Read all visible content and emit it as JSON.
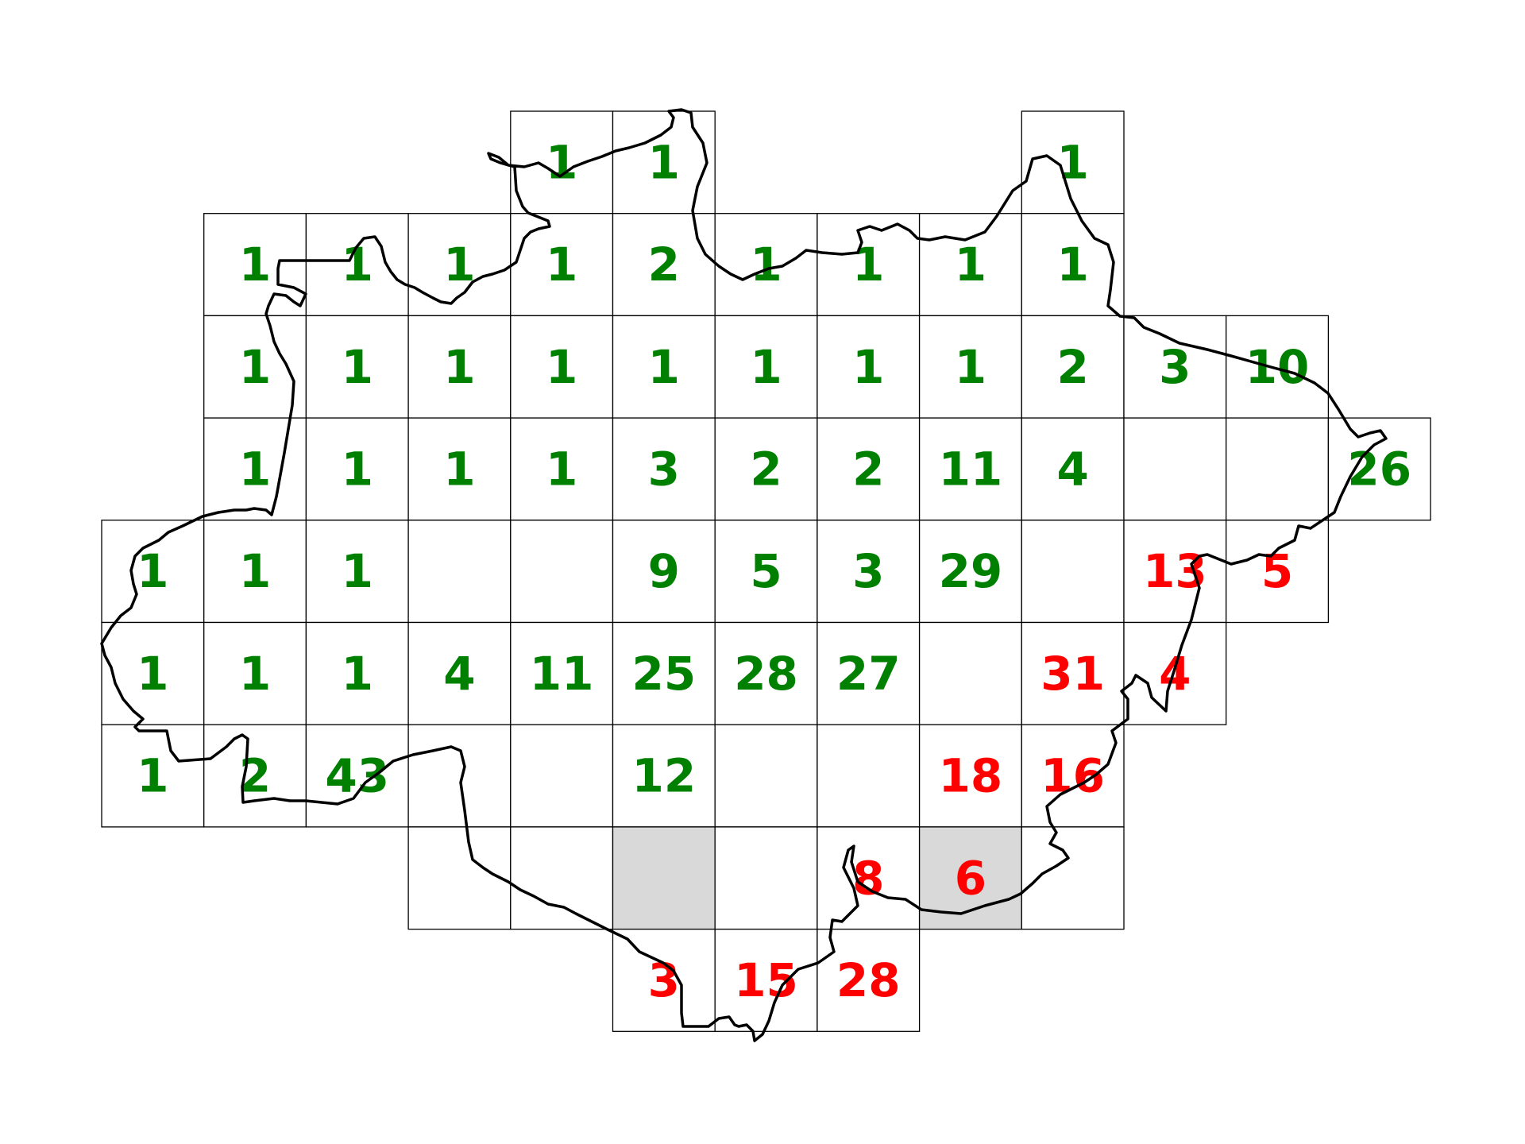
{
  "colors": {
    "green": "#008000",
    "red": "#ff0000",
    "cell_fill": "#ffffff",
    "cell_fill_shaded": "#d9d9d9",
    "grid_stroke": "#000000",
    "outline_stroke": "#000000"
  },
  "grid": {
    "cells": [
      {
        "row": 0,
        "col": 4,
        "label": "1",
        "status": "green"
      },
      {
        "row": 0,
        "col": 5,
        "label": "1",
        "status": "green"
      },
      {
        "row": 0,
        "col": 9,
        "label": "1",
        "status": "green"
      },
      {
        "row": 1,
        "col": 1,
        "label": "1",
        "status": "green"
      },
      {
        "row": 1,
        "col": 2,
        "label": "1",
        "status": "green"
      },
      {
        "row": 1,
        "col": 3,
        "label": "1",
        "status": "green"
      },
      {
        "row": 1,
        "col": 4,
        "label": "1",
        "status": "green"
      },
      {
        "row": 1,
        "col": 5,
        "label": "2",
        "status": "green"
      },
      {
        "row": 1,
        "col": 6,
        "label": "1",
        "status": "green"
      },
      {
        "row": 1,
        "col": 7,
        "label": "1",
        "status": "green"
      },
      {
        "row": 1,
        "col": 8,
        "label": "1",
        "status": "green"
      },
      {
        "row": 1,
        "col": 9,
        "label": "1",
        "status": "green"
      },
      {
        "row": 2,
        "col": 1,
        "label": "1",
        "status": "green"
      },
      {
        "row": 2,
        "col": 2,
        "label": "1",
        "status": "green"
      },
      {
        "row": 2,
        "col": 3,
        "label": "1",
        "status": "green"
      },
      {
        "row": 2,
        "col": 4,
        "label": "1",
        "status": "green"
      },
      {
        "row": 2,
        "col": 5,
        "label": "1",
        "status": "green"
      },
      {
        "row": 2,
        "col": 6,
        "label": "1",
        "status": "green"
      },
      {
        "row": 2,
        "col": 7,
        "label": "1",
        "status": "green"
      },
      {
        "row": 2,
        "col": 8,
        "label": "1",
        "status": "green"
      },
      {
        "row": 2,
        "col": 9,
        "label": "2",
        "status": "green"
      },
      {
        "row": 2,
        "col": 10,
        "label": "3",
        "status": "green"
      },
      {
        "row": 2,
        "col": 11,
        "label": "10",
        "status": "green"
      },
      {
        "row": 3,
        "col": 1,
        "label": "1",
        "status": "green"
      },
      {
        "row": 3,
        "col": 2,
        "label": "1",
        "status": "green"
      },
      {
        "row": 3,
        "col": 3,
        "label": "1",
        "status": "green"
      },
      {
        "row": 3,
        "col": 4,
        "label": "1",
        "status": "green"
      },
      {
        "row": 3,
        "col": 5,
        "label": "3",
        "status": "green"
      },
      {
        "row": 3,
        "col": 6,
        "label": "2",
        "status": "green"
      },
      {
        "row": 3,
        "col": 7,
        "label": "2",
        "status": "green"
      },
      {
        "row": 3,
        "col": 8,
        "label": "11",
        "status": "green"
      },
      {
        "row": 3,
        "col": 9,
        "label": "4",
        "status": "green"
      },
      {
        "row": 3,
        "col": 10,
        "label": "",
        "status": "green"
      },
      {
        "row": 3,
        "col": 11,
        "label": "",
        "status": "green"
      },
      {
        "row": 3,
        "col": 12,
        "label": "26",
        "status": "green"
      },
      {
        "row": 4,
        "col": 0,
        "label": "1",
        "status": "green"
      },
      {
        "row": 4,
        "col": 1,
        "label": "1",
        "status": "green"
      },
      {
        "row": 4,
        "col": 2,
        "label": "1",
        "status": "green"
      },
      {
        "row": 4,
        "col": 3,
        "label": "",
        "status": "green"
      },
      {
        "row": 4,
        "col": 4,
        "label": "",
        "status": "green"
      },
      {
        "row": 4,
        "col": 5,
        "label": "9",
        "status": "green"
      },
      {
        "row": 4,
        "col": 6,
        "label": "5",
        "status": "green"
      },
      {
        "row": 4,
        "col": 7,
        "label": "3",
        "status": "green"
      },
      {
        "row": 4,
        "col": 8,
        "label": "29",
        "status": "green"
      },
      {
        "row": 4,
        "col": 9,
        "label": "",
        "status": "green"
      },
      {
        "row": 4,
        "col": 10,
        "label": "13",
        "status": "red"
      },
      {
        "row": 4,
        "col": 11,
        "label": "5",
        "status": "red"
      },
      {
        "row": 5,
        "col": 0,
        "label": "1",
        "status": "green"
      },
      {
        "row": 5,
        "col": 1,
        "label": "1",
        "status": "green"
      },
      {
        "row": 5,
        "col": 2,
        "label": "1",
        "status": "green"
      },
      {
        "row": 5,
        "col": 3,
        "label": "4",
        "status": "green"
      },
      {
        "row": 5,
        "col": 4,
        "label": "11",
        "status": "green"
      },
      {
        "row": 5,
        "col": 5,
        "label": "25",
        "status": "green"
      },
      {
        "row": 5,
        "col": 6,
        "label": "28",
        "status": "green"
      },
      {
        "row": 5,
        "col": 7,
        "label": "27",
        "status": "green"
      },
      {
        "row": 5,
        "col": 8,
        "label": "",
        "status": "green"
      },
      {
        "row": 5,
        "col": 9,
        "label": "31",
        "status": "red"
      },
      {
        "row": 5,
        "col": 10,
        "label": "4",
        "status": "red"
      },
      {
        "row": 6,
        "col": 0,
        "label": "1",
        "status": "green"
      },
      {
        "row": 6,
        "col": 1,
        "label": "2",
        "status": "green"
      },
      {
        "row": 6,
        "col": 2,
        "label": "43",
        "status": "green"
      },
      {
        "row": 6,
        "col": 3,
        "label": "",
        "status": "green"
      },
      {
        "row": 6,
        "col": 4,
        "label": "",
        "status": "green"
      },
      {
        "row": 6,
        "col": 5,
        "label": "12",
        "status": "green"
      },
      {
        "row": 6,
        "col": 6,
        "label": "",
        "status": "green"
      },
      {
        "row": 6,
        "col": 7,
        "label": "",
        "status": "green"
      },
      {
        "row": 6,
        "col": 8,
        "label": "18",
        "status": "red"
      },
      {
        "row": 6,
        "col": 9,
        "label": "16",
        "status": "red"
      },
      {
        "row": 7,
        "col": 3,
        "label": "",
        "status": "green"
      },
      {
        "row": 7,
        "col": 4,
        "label": "",
        "status": "green"
      },
      {
        "row": 7,
        "col": 5,
        "label": "",
        "status": "green",
        "shaded": true
      },
      {
        "row": 7,
        "col": 6,
        "label": "",
        "status": "green"
      },
      {
        "row": 7,
        "col": 7,
        "label": "8",
        "status": "red"
      },
      {
        "row": 7,
        "col": 8,
        "label": "6",
        "status": "red",
        "shaded": true
      },
      {
        "row": 7,
        "col": 9,
        "label": "",
        "status": "green"
      },
      {
        "row": 8,
        "col": 5,
        "label": "3",
        "status": "red"
      },
      {
        "row": 8,
        "col": 6,
        "label": "15",
        "status": "red"
      },
      {
        "row": 8,
        "col": 7,
        "label": "28",
        "status": "red"
      }
    ]
  }
}
